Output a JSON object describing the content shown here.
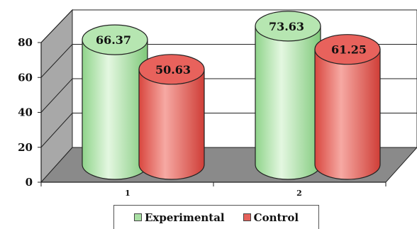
{
  "chart_data": {
    "type": "bar",
    "style": "3d-cylinder",
    "categories": [
      "1",
      "2"
    ],
    "series": [
      {
        "name": "Experimental",
        "values": [
          66.37,
          73.63
        ],
        "color": "#a9e0a4"
      },
      {
        "name": "Control",
        "values": [
          50.63,
          61.25
        ],
        "color": "#e5615b"
      }
    ],
    "y_ticks": [
      "0",
      "20",
      "40",
      "60",
      "80"
    ],
    "ylim": [
      0,
      80
    ],
    "grid": true,
    "legend": "bottom",
    "title": "",
    "xlabel": "",
    "ylabel": ""
  }
}
